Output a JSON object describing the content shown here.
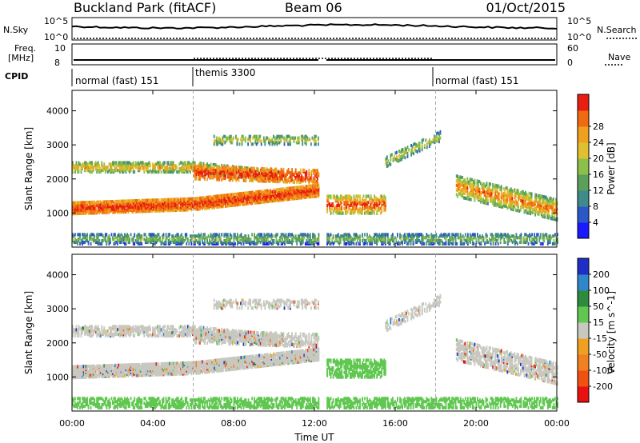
{
  "header": {
    "title": "Buckland Park (fitACF)",
    "beam": "Beam 06",
    "date": "01/Oct/2015"
  },
  "strips": {
    "nsky_label": "N.Sky",
    "nsky_ticks": [
      "10^5",
      "10^0"
    ],
    "nsearch_label": "N.Search",
    "nsearch_ticks": [
      "10^5",
      "10^0"
    ],
    "freq_label_1": "Freq.",
    "freq_label_2": "[MHz]",
    "freq_ticks": [
      "10",
      "8"
    ],
    "nave_label": "Nave",
    "nave_ticks": [
      "60",
      "0"
    ],
    "cpid_label": "CPID",
    "cpid_segments": [
      {
        "label": "normal (fast) 151",
        "start": 0,
        "end": 6
      },
      {
        "label": "themis 3300",
        "start": 6,
        "end": 18
      },
      {
        "label": "normal (fast) 151",
        "start": 18,
        "end": 24
      }
    ]
  },
  "colors": {
    "power_scale": [
      "#1a1aff",
      "#2a58c8",
      "#3f8a8a",
      "#5aa05a",
      "#8cc048",
      "#e0c030",
      "#f0a020",
      "#f06a10",
      "#e81e10"
    ],
    "velocity_scale": [
      "#1e2fc8",
      "#2f86c8",
      "#2e8a3c",
      "#60c850",
      "#c8c8c0",
      "#f0a020",
      "#f08020",
      "#f05010",
      "#e81010"
    ]
  },
  "chart_data": [
    {
      "type": "heatmap",
      "title": "",
      "ylabel": "Slant Range [km]",
      "xlabel": "Time UT",
      "ylim": [
        0,
        4600
      ],
      "xlim": [
        0,
        24
      ],
      "x_ticks": [
        "00:00",
        "04:00",
        "08:00",
        "12:00",
        "16:00",
        "20:00",
        "00:00"
      ],
      "y_ticks": [
        1000,
        2000,
        3000,
        4000
      ],
      "colorbar": {
        "label": "Power [dB]",
        "ticks": [
          4,
          8,
          12,
          16,
          20,
          24,
          28
        ]
      },
      "data_gap_hours": [
        12.2,
        12.6
      ]
    },
    {
      "type": "heatmap",
      "title": "",
      "ylabel": "Slant Range [km]",
      "xlabel": "Time UT",
      "ylim": [
        0,
        4600
      ],
      "xlim": [
        0,
        24
      ],
      "x_ticks": [
        "00:00",
        "04:00",
        "08:00",
        "12:00",
        "16:00",
        "20:00",
        "00:00"
      ],
      "y_ticks": [
        1000,
        2000,
        3000,
        4000
      ],
      "colorbar": {
        "label": "Velocity [m s^-1]",
        "ticks": [
          200,
          100,
          50,
          15,
          -15,
          -50,
          -100,
          -200
        ]
      },
      "data_gap_hours": [
        12.2,
        12.6
      ]
    }
  ]
}
